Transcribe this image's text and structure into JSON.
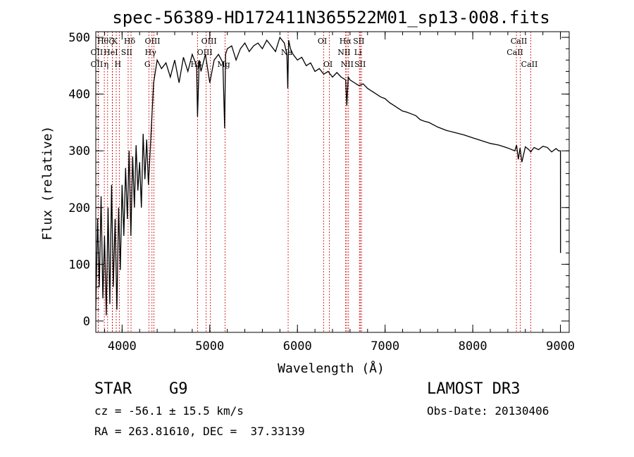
{
  "chart_data": {
    "type": "line",
    "title": "spec-56389-HD172411N365522M01_sp13-008.fits",
    "xlabel": "Wavelength (Å)",
    "ylabel": "Flux (relative)",
    "xlim": [
      3700,
      9100
    ],
    "ylim": [
      -20,
      510
    ],
    "x_ticks": [
      4000,
      5000,
      6000,
      7000,
      8000,
      9000
    ],
    "y_ticks": [
      0,
      100,
      200,
      300,
      400,
      500
    ],
    "grid": false,
    "series": [
      {
        "x": [
          3700,
          3720,
          3740,
          3760,
          3780,
          3800,
          3820,
          3840,
          3860,
          3880,
          3900,
          3920,
          3940,
          3960,
          3980,
          4000,
          4020,
          4040,
          4060,
          4080,
          4100,
          4120,
          4140,
          4160,
          4180,
          4200,
          4220,
          4240,
          4260,
          4280,
          4300,
          4320,
          4340,
          4360,
          4380,
          4400,
          4450,
          4500,
          4550,
          4600,
          4650,
          4700,
          4750,
          4800,
          4850,
          4860,
          4880,
          4900,
          4950,
          5000,
          5050,
          5100,
          5150,
          5170,
          5180,
          5200,
          5250,
          5300,
          5350,
          5400,
          5450,
          5500,
          5550,
          5600,
          5650,
          5700,
          5750,
          5800,
          5850,
          5880,
          5890,
          5900,
          5920,
          5950,
          6000,
          6050,
          6100,
          6150,
          6200,
          6250,
          6300,
          6350,
          6400,
          6450,
          6500,
          6550,
          6563,
          6580,
          6600,
          6650,
          6700,
          6750,
          6800,
          6850,
          6900,
          6950,
          7000,
          7050,
          7100,
          7150,
          7200,
          7250,
          7300,
          7350,
          7400,
          7450,
          7500,
          7600,
          7700,
          7800,
          7900,
          8000,
          8100,
          8200,
          8300,
          8400,
          8480,
          8500,
          8520,
          8540,
          8560,
          8600,
          8640,
          8662,
          8680,
          8700,
          8750,
          8800,
          8850,
          8900,
          8950,
          8980,
          9000,
          9001
        ],
        "y": [
          20,
          180,
          60,
          220,
          40,
          150,
          10,
          200,
          30,
          240,
          60,
          180,
          20,
          200,
          90,
          240,
          150,
          270,
          180,
          300,
          150,
          290,
          200,
          310,
          230,
          280,
          200,
          330,
          250,
          320,
          240,
          300,
          360,
          420,
          440,
          460,
          445,
          455,
          430,
          460,
          420,
          465,
          440,
          470,
          450,
          360,
          460,
          440,
          470,
          420,
          460,
          470,
          455,
          340,
          470,
          480,
          485,
          460,
          480,
          490,
          475,
          485,
          490,
          480,
          495,
          485,
          475,
          500,
          490,
          470,
          410,
          495,
          480,
          470,
          460,
          465,
          450,
          455,
          440,
          445,
          435,
          440,
          430,
          438,
          430,
          425,
          380,
          430,
          425,
          420,
          415,
          418,
          410,
          405,
          400,
          395,
          392,
          385,
          380,
          375,
          370,
          368,
          365,
          362,
          355,
          352,
          350,
          342,
          336,
          332,
          328,
          323,
          318,
          313,
          310,
          305,
          300,
          310,
          285,
          305,
          280,
          307,
          302,
          298,
          302,
          306,
          302,
          308,
          306,
          298,
          304,
          300,
          300,
          120
        ]
      }
    ],
    "line_markers": [
      {
        "wave": 3797,
        "name": "Hθ",
        "row": 1
      },
      {
        "wave": 3727,
        "name": "OII",
        "row": 2
      },
      {
        "wave": 3727,
        "name": "OII",
        "row": 3
      },
      {
        "wave": 3835,
        "name": "η",
        "row": 3
      },
      {
        "wave": 3889,
        "name": "ζ",
        "row": 1
      },
      {
        "wave": 3933,
        "name": "K",
        "row": 1
      },
      {
        "wave": 3968,
        "name": "H",
        "row": 3
      },
      {
        "wave": 3888,
        "name": "HeI",
        "row": 2
      },
      {
        "wave": 4069,
        "name": "SII",
        "row": 2
      },
      {
        "wave": 4102,
        "name": "Hδ",
        "row": 1
      },
      {
        "wave": 4305,
        "name": "G",
        "row": 3
      },
      {
        "wave": 4341,
        "name": "Hγ",
        "row": 2
      },
      {
        "wave": 4363,
        "name": "OIII",
        "row": 1
      },
      {
        "wave": 4861,
        "name": "Hβ",
        "row": 3
      },
      {
        "wave": 4959,
        "name": "OIII",
        "row": 2
      },
      {
        "wave": 5007,
        "name": "OIII",
        "row": 1
      },
      {
        "wave": 5175,
        "name": "Mg",
        "row": 3
      },
      {
        "wave": 5894,
        "name": "Na",
        "row": 2
      },
      {
        "wave": 6300,
        "name": "OI",
        "row": 1
      },
      {
        "wave": 6364,
        "name": "OI",
        "row": 3
      },
      {
        "wave": 6548,
        "name": "NII",
        "row": 2
      },
      {
        "wave": 6563,
        "name": "Hα",
        "row": 1
      },
      {
        "wave": 6583,
        "name": "NII",
        "row": 3
      },
      {
        "wave": 6707,
        "name": "Li",
        "row": 2
      },
      {
        "wave": 6716,
        "name": "SII",
        "row": 1
      },
      {
        "wave": 6731,
        "name": "SII",
        "row": 3
      },
      {
        "wave": 8498,
        "name": "CaII",
        "row": 2
      },
      {
        "wave": 8542,
        "name": "CaII",
        "row": 1
      },
      {
        "wave": 8662,
        "name": "CaII",
        "row": 3
      }
    ]
  },
  "info": {
    "class_label": "STAR",
    "subclass": "G9",
    "survey": "LAMOST DR3",
    "cz": "cz = -56.1 ± 15.5 km/s",
    "obs_date": "Obs-Date: 20130406",
    "coords": "RA = 263.81610, DEC =  37.33139"
  },
  "colors": {
    "spectrum": "#000000",
    "line_marker": "#cc0000",
    "background": "#ffffff"
  }
}
